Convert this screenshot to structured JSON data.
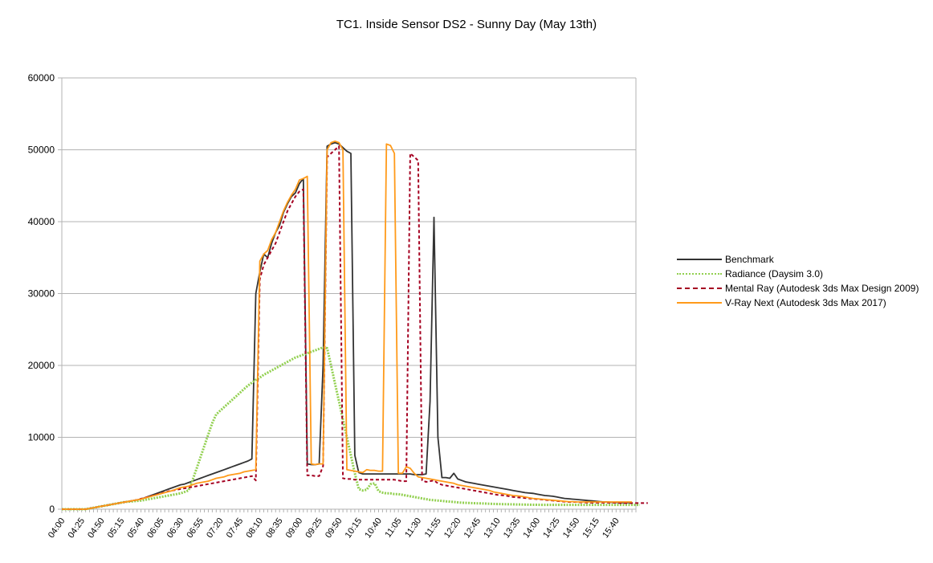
{
  "chart_data": {
    "type": "line",
    "title": "TC1. Inside Sensor DS2 - Sunny Day (May 13th)",
    "xlabel": "",
    "ylabel": "",
    "ylim": [
      0,
      60000
    ],
    "yticks": [
      0,
      10000,
      20000,
      30000,
      40000,
      50000,
      60000
    ],
    "grid": true,
    "legend_position": "right",
    "x_start": "04:00",
    "x_step_minutes": 5,
    "x_tick_labels": [
      "04:00",
      "04:25",
      "04:50",
      "05:15",
      "05:40",
      "06:05",
      "06:30",
      "06:55",
      "07:20",
      "07:45",
      "08:10",
      "08:35",
      "09:00",
      "09:25",
      "09:50",
      "10:15",
      "10:40",
      "11:05",
      "11:30",
      "11:55",
      "12:20",
      "12:45",
      "13:10",
      "13:35",
      "14:00",
      "14:25",
      "14:50",
      "15:15",
      "15:40"
    ],
    "x": [
      "04:00",
      "04:05",
      "04:10",
      "04:15",
      "04:20",
      "04:25",
      "04:30",
      "04:35",
      "04:40",
      "04:45",
      "04:50",
      "04:55",
      "05:00",
      "05:05",
      "05:10",
      "05:15",
      "05:20",
      "05:25",
      "05:30",
      "05:35",
      "05:40",
      "05:45",
      "05:50",
      "05:55",
      "06:00",
      "06:05",
      "06:10",
      "06:15",
      "06:20",
      "06:25",
      "06:30",
      "06:35",
      "06:40",
      "06:45",
      "06:50",
      "06:55",
      "07:00",
      "07:05",
      "07:10",
      "07:15",
      "07:20",
      "07:25",
      "07:30",
      "07:35",
      "07:40",
      "07:45",
      "07:50",
      "07:55",
      "08:00",
      "08:05",
      "08:10",
      "08:15",
      "08:20",
      "08:25",
      "08:30",
      "08:35",
      "08:40",
      "08:45",
      "08:50",
      "08:55",
      "09:00",
      "09:05",
      "09:10",
      "09:15",
      "09:20",
      "09:25",
      "09:30",
      "09:35",
      "09:40",
      "09:45",
      "09:50",
      "09:55",
      "10:00",
      "10:05",
      "10:10",
      "10:15",
      "10:20",
      "10:25",
      "10:30",
      "10:35",
      "10:40",
      "10:45",
      "10:50",
      "10:55",
      "11:00",
      "11:05",
      "11:10",
      "11:15",
      "11:20",
      "11:25",
      "11:30",
      "11:35",
      "11:40",
      "11:45",
      "11:50",
      "11:55",
      "12:00",
      "12:05",
      "12:10",
      "12:15",
      "12:20",
      "12:25",
      "12:30",
      "12:35",
      "12:40",
      "12:45",
      "12:50",
      "12:55",
      "13:00",
      "13:05",
      "13:10",
      "13:15",
      "13:20",
      "13:25",
      "13:30",
      "13:35",
      "13:40",
      "13:45",
      "13:50",
      "13:55",
      "14:00",
      "14:05",
      "14:10",
      "14:15",
      "14:20",
      "14:25",
      "14:30",
      "14:35",
      "14:40",
      "14:45",
      "14:50",
      "14:55",
      "15:00",
      "15:05",
      "15:10",
      "15:15",
      "15:20",
      "15:25",
      "15:30",
      "15:35",
      "15:40",
      "15:45",
      "15:50",
      "15:55",
      "16:00",
      "16:05"
    ],
    "series": [
      {
        "name": "Benchmark",
        "color": "#333333",
        "style": "solid",
        "values": [
          0,
          0,
          0,
          0,
          0,
          0,
          0,
          100,
          200,
          300,
          400,
          500,
          600,
          700,
          800,
          900,
          1000,
          1100,
          1200,
          1300,
          1400,
          1600,
          1800,
          2000,
          2200,
          2400,
          2600,
          2800,
          3000,
          3200,
          3400,
          3500,
          3700,
          3900,
          4100,
          4300,
          4500,
          4700,
          4900,
          5100,
          5300,
          5500,
          5700,
          5900,
          6100,
          6300,
          6500,
          6700,
          7000,
          30000,
          33000,
          35500,
          35000,
          37000,
          38500,
          39500,
          41300,
          42500,
          43500,
          44000,
          45300,
          46000,
          6300,
          6200,
          6200,
          6300,
          20000,
          50500,
          50800,
          51000,
          50800,
          50300,
          49800,
          49500,
          7500,
          5100,
          4900,
          4900,
          4900,
          4900,
          4900,
          4900,
          4900,
          4900,
          4900,
          4900,
          4900,
          4900,
          4900,
          4800,
          4800,
          4800,
          4900,
          15000,
          40600,
          10000,
          4400,
          4400,
          4300,
          5000,
          4200,
          4000,
          3800,
          3700,
          3600,
          3500,
          3400,
          3300,
          3200,
          3100,
          3000,
          2900,
          2800,
          2700,
          2600,
          2500,
          2400,
          2300,
          2250,
          2200,
          2100,
          2000,
          1900,
          1850,
          1800,
          1700,
          1600,
          1500,
          1450,
          1400,
          1350,
          1300,
          1250,
          1200,
          1150,
          1100,
          1050,
          1000,
          1000,
          950,
          950,
          900,
          900,
          900,
          900
        ]
      },
      {
        "name": "Radiance (Daysim 3.0)",
        "color": "#92D050",
        "style": "dotted",
        "values": [
          0,
          0,
          0,
          0,
          0,
          0,
          0,
          100,
          200,
          300,
          400,
          500,
          600,
          700,
          800,
          900,
          1000,
          1050,
          1100,
          1150,
          1200,
          1300,
          1400,
          1500,
          1600,
          1700,
          1800,
          1900,
          2000,
          2100,
          2200,
          2400,
          2600,
          4000,
          5600,
          7200,
          8800,
          10400,
          12000,
          13200,
          13700,
          14200,
          14700,
          15200,
          15700,
          16200,
          16700,
          17200,
          17600,
          18000,
          18300,
          18700,
          19000,
          19300,
          19600,
          19900,
          20200,
          20500,
          20800,
          21100,
          21300,
          21500,
          21700,
          21900,
          22100,
          22300,
          22500,
          22400,
          20000,
          17500,
          15000,
          12500,
          10000,
          7500,
          5000,
          2800,
          2600,
          2700,
          3500,
          3600,
          2500,
          2300,
          2200,
          2200,
          2100,
          2100,
          2000,
          1900,
          1800,
          1700,
          1600,
          1500,
          1400,
          1300,
          1250,
          1200,
          1150,
          1100,
          1050,
          1000,
          950,
          900,
          880,
          860,
          840,
          820,
          800,
          780,
          760,
          740,
          720,
          700,
          690,
          680,
          670,
          660,
          650,
          640,
          630,
          620,
          610,
          600,
          600,
          600,
          600,
          600,
          600,
          600,
          600,
          600,
          600,
          600,
          600,
          600,
          600,
          600,
          600,
          600,
          600,
          600,
          600,
          600,
          600,
          600,
          600,
          600,
          600
        ]
      },
      {
        "name": "Mental Ray (Autodesk 3ds Max Design 2009)",
        "color": "#A50021",
        "style": "dashed",
        "values": [
          0,
          0,
          0,
          0,
          0,
          0,
          0,
          100,
          200,
          300,
          400,
          500,
          600,
          700,
          800,
          900,
          1000,
          1100,
          1200,
          1300,
          1450,
          1600,
          1750,
          1900,
          2050,
          2200,
          2350,
          2500,
          2600,
          2700,
          2800,
          2900,
          3000,
          3100,
          3200,
          3300,
          3400,
          3500,
          3600,
          3700,
          3800,
          3900,
          4000,
          4100,
          4200,
          4300,
          4400,
          4500,
          4600,
          4000,
          32000,
          34000,
          35000,
          36000,
          37000,
          38500,
          40000,
          41500,
          42500,
          43500,
          44200,
          44500,
          4700,
          4700,
          4600,
          4600,
          6000,
          49000,
          49500,
          50000,
          50500,
          4300,
          4200,
          4200,
          4100,
          4100,
          4100,
          4100,
          4100,
          4100,
          4100,
          4100,
          4100,
          4100,
          4100,
          4000,
          3900,
          3900,
          49500,
          49000,
          48500,
          4000,
          3800,
          3900,
          4000,
          3600,
          3400,
          3300,
          3200,
          3100,
          3000,
          2900,
          2800,
          2700,
          2600,
          2500,
          2400,
          2300,
          2200,
          2100,
          2000,
          1950,
          1900,
          1800,
          1700,
          1650,
          1600,
          1550,
          1500,
          1450,
          1400,
          1350,
          1300,
          1250,
          1200,
          1150,
          1100,
          1050,
          1000,
          1000,
          1000,
          950,
          950,
          900,
          900,
          900,
          900,
          900,
          900,
          900,
          900,
          850,
          850,
          850,
          850,
          850,
          850,
          850,
          850
        ]
      },
      {
        "name": "V-Ray Next (Autodesk 3ds Max 2017)",
        "color": "#FF9A1A",
        "style": "solid",
        "values": [
          0,
          0,
          0,
          0,
          0,
          0,
          0,
          100,
          200,
          300,
          400,
          500,
          600,
          700,
          800,
          900,
          1000,
          1100,
          1200,
          1300,
          1400,
          1550,
          1700,
          1850,
          2000,
          2150,
          2300,
          2450,
          2600,
          2800,
          3000,
          3100,
          3200,
          3400,
          3600,
          3700,
          3800,
          3900,
          4100,
          4300,
          4400,
          4500,
          4700,
          4800,
          4900,
          5000,
          5200,
          5300,
          5400,
          5500,
          34500,
          35500,
          36000,
          37500,
          38500,
          40000,
          41500,
          42700,
          43700,
          44500,
          45800,
          46000,
          46300,
          6300,
          6200,
          6300,
          6300,
          50000,
          51000,
          51200,
          51000,
          50000,
          5500,
          5400,
          5300,
          5200,
          5100,
          5500,
          5400,
          5400,
          5300,
          5300,
          50800,
          50600,
          49500,
          5000,
          5000,
          5900,
          5700,
          5000,
          4500,
          4400,
          4300,
          4200,
          4100,
          4000,
          3900,
          3800,
          3700,
          3600,
          3400,
          3300,
          3200,
          3100,
          3000,
          2900,
          2800,
          2700,
          2600,
          2400,
          2300,
          2200,
          2100,
          2000,
          1900,
          1850,
          1800,
          1700,
          1600,
          1500,
          1450,
          1400,
          1350,
          1300,
          1250,
          1200,
          1150,
          1100,
          1050,
          1050,
          1000,
          1000,
          1000,
          1000,
          1000,
          1000,
          1000,
          1000,
          1000,
          1000,
          1000,
          1000,
          1000,
          1000,
          1000
        ]
      }
    ]
  }
}
